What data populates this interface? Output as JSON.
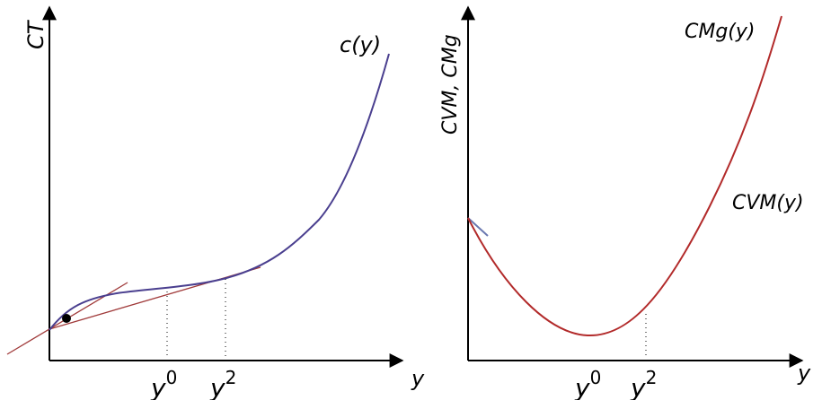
{
  "left_panel": {
    "y_axis_label": "CT",
    "x_axis_label": "y",
    "curve_label": "c(y)",
    "tick_labels": [
      {
        "base": "y",
        "sup": "0"
      },
      {
        "base": "y",
        "sup": "2"
      }
    ],
    "colors": {
      "curve": "#4a3f8f",
      "tangent": "#a03a3a"
    }
  },
  "right_panel": {
    "y_axis_label": "CVM, CMg",
    "x_axis_label": "y",
    "curve_labels": [
      "CMg(y)",
      "CVM(y)"
    ],
    "tick_labels": [
      {
        "base": "y",
        "sup": "0"
      },
      {
        "base": "y",
        "sup": "2"
      }
    ],
    "colors": {
      "curve": "#b22a2a",
      "short_segment": "#6a78b0"
    }
  }
}
